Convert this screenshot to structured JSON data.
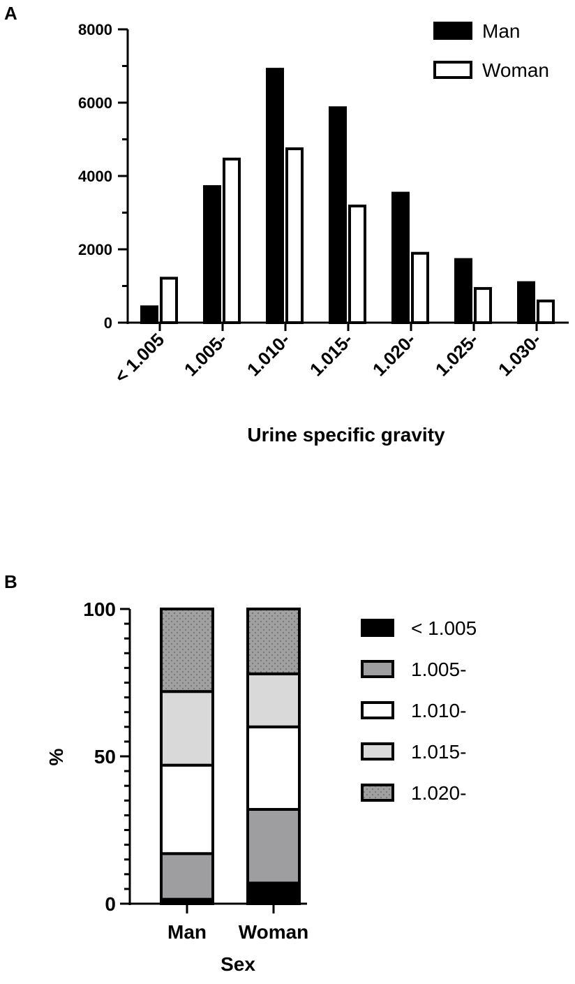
{
  "panel_a": {
    "letter": "A"
  },
  "panel_b": {
    "letter": "B"
  },
  "chart_data": [
    {
      "type": "bar",
      "categories": [
        "< 1.005",
        "1.005-",
        "1.010-",
        "1.015-",
        "1.020-",
        "1.025-",
        "1.030-"
      ],
      "series": [
        {
          "name": "Man",
          "values": [
            470,
            3750,
            6950,
            5900,
            3570,
            1760,
            1130
          ],
          "fill": "#000000"
        },
        {
          "name": "Woman",
          "values": [
            1250,
            4500,
            4780,
            3220,
            1930,
            970,
            630
          ],
          "fill": "#ffffff"
        }
      ],
      "xlabel": "Urine specific gravity",
      "ylabel": "",
      "ylim": [
        0,
        8000
      ],
      "yticks": [
        "0",
        "2000",
        "4000",
        "6000",
        "8000"
      ],
      "legend": "top-right",
      "grid": false
    },
    {
      "type": "bar",
      "stacked": true,
      "categories": [
        "Man",
        "Woman"
      ],
      "series": [
        {
          "name": "< 1.005",
          "values": [
            1.5,
            7
          ],
          "fill": "#000000"
        },
        {
          "name": "1.005-",
          "values": [
            15.5,
            25
          ],
          "fill": "#9e9ea0"
        },
        {
          "name": "1.010-",
          "values": [
            30,
            28
          ],
          "fill": "#ffffff"
        },
        {
          "name": "1.015-",
          "values": [
            25,
            18
          ],
          "fill": "#d9d9d9"
        },
        {
          "name": "1.020-",
          "values": [
            28,
            22
          ],
          "fill": "#a0a0a0",
          "pattern": "dots"
        }
      ],
      "xlabel": "Sex",
      "ylabel": "%",
      "ylim": [
        0,
        100
      ],
      "yticks": [
        "0",
        "50",
        "100"
      ],
      "legend": "right",
      "grid": false
    }
  ]
}
